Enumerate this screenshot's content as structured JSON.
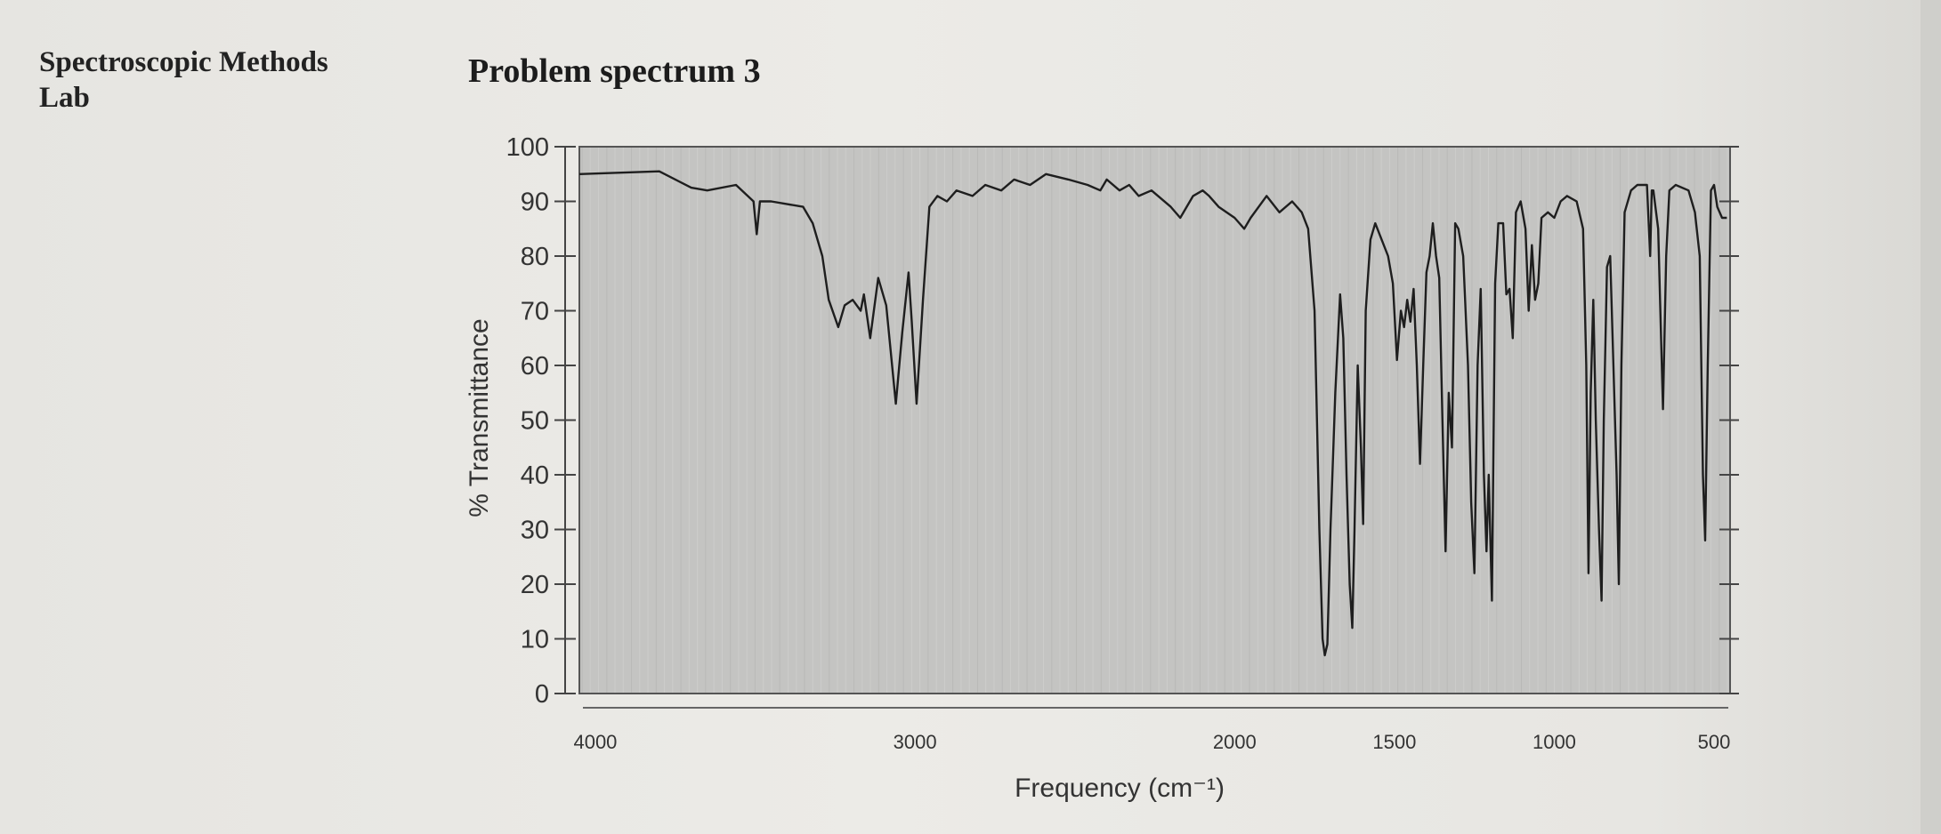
{
  "header": {
    "course_line1": "Spectroscopic Methods",
    "course_line2": "Lab",
    "problem_title": "Problem spectrum 3"
  },
  "colors": {
    "plot_background": "#c4c4c2",
    "trace": "#1e1e1e",
    "page": "#e9e8e4"
  },
  "chart_data": {
    "type": "line",
    "title": "Problem spectrum 3",
    "xlabel": "Frequency (cm⁻¹)",
    "ylabel": "% Transmittance",
    "xlim": [
      4050,
      450
    ],
    "ylim": [
      0,
      100
    ],
    "x_reversed": true,
    "grid": false,
    "xticks": [
      4000,
      3000,
      2000,
      1500,
      1000,
      500
    ],
    "xtick_labels": [
      "4000",
      "3000",
      "2000",
      "1500",
      "1000",
      "500"
    ],
    "yticks": [
      0,
      10,
      20,
      30,
      40,
      50,
      60,
      70,
      80,
      90,
      100
    ],
    "ytick_labels": [
      "0",
      "10",
      "20",
      "30",
      "40",
      "50",
      "60",
      "70",
      "80",
      "90",
      "100"
    ],
    "series": [
      {
        "points": [
          [
            4050,
            95
          ],
          [
            3800,
            95.5
          ],
          [
            3700,
            92.5
          ],
          [
            3650,
            92
          ],
          [
            3560,
            93
          ],
          [
            3505,
            90
          ],
          [
            3495,
            84
          ],
          [
            3485,
            90
          ],
          [
            3450,
            90
          ],
          [
            3350,
            89
          ],
          [
            3320,
            86
          ],
          [
            3290,
            80
          ],
          [
            3270,
            72
          ],
          [
            3240,
            67
          ],
          [
            3220,
            71
          ],
          [
            3195,
            72
          ],
          [
            3170,
            70
          ],
          [
            3160,
            73
          ],
          [
            3140,
            65
          ],
          [
            3115,
            76
          ],
          [
            3090,
            71
          ],
          [
            3060,
            53
          ],
          [
            3040,
            66
          ],
          [
            3020,
            77
          ],
          [
            3010,
            68
          ],
          [
            2995,
            53
          ],
          [
            2975,
            72
          ],
          [
            2955,
            89
          ],
          [
            2930,
            91
          ],
          [
            2900,
            90
          ],
          [
            2870,
            92
          ],
          [
            2820,
            91
          ],
          [
            2780,
            93
          ],
          [
            2730,
            92
          ],
          [
            2690,
            94
          ],
          [
            2640,
            93
          ],
          [
            2590,
            95
          ],
          [
            2520,
            94
          ],
          [
            2460,
            93
          ],
          [
            2420,
            92
          ],
          [
            2400,
            94
          ],
          [
            2360,
            92
          ],
          [
            2330,
            93
          ],
          [
            2300,
            91
          ],
          [
            2260,
            92
          ],
          [
            2200,
            89
          ],
          [
            2170,
            87
          ],
          [
            2130,
            91
          ],
          [
            2100,
            92
          ],
          [
            2080,
            91
          ],
          [
            2050,
            89
          ],
          [
            2000,
            87
          ],
          [
            1970,
            85
          ],
          [
            1950,
            87
          ],
          [
            1900,
            91
          ],
          [
            1860,
            88
          ],
          [
            1820,
            90
          ],
          [
            1790,
            88
          ],
          [
            1770,
            85
          ],
          [
            1750,
            70
          ],
          [
            1735,
            30
          ],
          [
            1725,
            10
          ],
          [
            1718,
            7
          ],
          [
            1710,
            9
          ],
          [
            1700,
            30
          ],
          [
            1685,
            55
          ],
          [
            1670,
            73
          ],
          [
            1660,
            65
          ],
          [
            1650,
            40
          ],
          [
            1640,
            20
          ],
          [
            1632,
            12
          ],
          [
            1625,
            30
          ],
          [
            1615,
            60
          ],
          [
            1605,
            45
          ],
          [
            1598,
            31
          ],
          [
            1590,
            70
          ],
          [
            1575,
            83
          ],
          [
            1560,
            86
          ],
          [
            1540,
            83
          ],
          [
            1520,
            80
          ],
          [
            1505,
            75
          ],
          [
            1492,
            61
          ],
          [
            1480,
            70
          ],
          [
            1470,
            67
          ],
          [
            1460,
            72
          ],
          [
            1450,
            68
          ],
          [
            1440,
            74
          ],
          [
            1430,
            60
          ],
          [
            1420,
            42
          ],
          [
            1410,
            60
          ],
          [
            1400,
            77
          ],
          [
            1390,
            80
          ],
          [
            1380,
            86
          ],
          [
            1370,
            80
          ],
          [
            1360,
            76
          ],
          [
            1350,
            50
          ],
          [
            1340,
            26
          ],
          [
            1330,
            55
          ],
          [
            1320,
            45
          ],
          [
            1310,
            86
          ],
          [
            1300,
            85
          ],
          [
            1285,
            80
          ],
          [
            1270,
            60
          ],
          [
            1260,
            35
          ],
          [
            1250,
            22
          ],
          [
            1240,
            60
          ],
          [
            1230,
            74
          ],
          [
            1220,
            40
          ],
          [
            1212,
            26
          ],
          [
            1205,
            40
          ],
          [
            1195,
            17
          ],
          [
            1185,
            75
          ],
          [
            1175,
            86
          ],
          [
            1160,
            86
          ],
          [
            1150,
            73
          ],
          [
            1140,
            74
          ],
          [
            1130,
            65
          ],
          [
            1120,
            88
          ],
          [
            1105,
            90
          ],
          [
            1090,
            85
          ],
          [
            1080,
            70
          ],
          [
            1070,
            82
          ],
          [
            1060,
            72
          ],
          [
            1050,
            75
          ],
          [
            1040,
            87
          ],
          [
            1020,
            88
          ],
          [
            1000,
            87
          ],
          [
            980,
            90
          ],
          [
            960,
            91
          ],
          [
            930,
            90
          ],
          [
            910,
            85
          ],
          [
            900,
            60
          ],
          [
            893,
            22
          ],
          [
            886,
            55
          ],
          [
            878,
            72
          ],
          [
            870,
            50
          ],
          [
            860,
            30
          ],
          [
            852,
            17
          ],
          [
            845,
            50
          ],
          [
            835,
            78
          ],
          [
            825,
            80
          ],
          [
            815,
            60
          ],
          [
            805,
            40
          ],
          [
            798,
            20
          ],
          [
            790,
            60
          ],
          [
            780,
            88
          ],
          [
            760,
            92
          ],
          [
            740,
            93
          ],
          [
            710,
            93
          ],
          [
            700,
            80
          ],
          [
            695,
            92
          ],
          [
            690,
            92
          ],
          [
            675,
            85
          ],
          [
            660,
            52
          ],
          [
            650,
            80
          ],
          [
            640,
            92
          ],
          [
            620,
            93
          ],
          [
            580,
            92
          ],
          [
            560,
            88
          ],
          [
            545,
            80
          ],
          [
            535,
            40
          ],
          [
            528,
            28
          ],
          [
            520,
            60
          ],
          [
            510,
            92
          ],
          [
            500,
            93
          ],
          [
            490,
            89
          ],
          [
            475,
            87
          ],
          [
            460,
            87
          ]
        ]
      }
    ]
  }
}
